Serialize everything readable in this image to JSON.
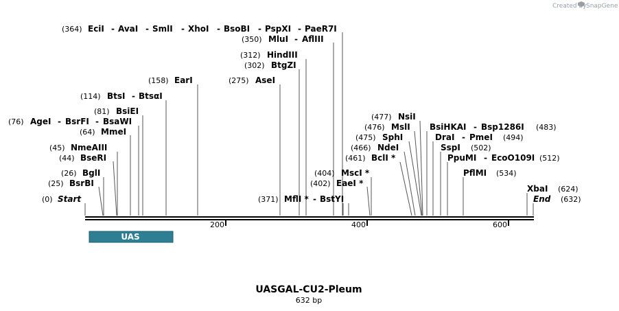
{
  "credit": "Created by",
  "brand": "SnapGene",
  "title": "UASGAL-CU2-Pleum",
  "length_label": "632 bp",
  "ticks": [
    {
      "label": "200",
      "pos": 200
    },
    {
      "label": "400",
      "pos": 400
    },
    {
      "label": "600",
      "pos": 600
    }
  ],
  "feature": {
    "label": "UAS",
    "color": "#2e7f94",
    "start": 5,
    "end": 125
  },
  "sites": [
    {
      "pos": "(364)",
      "names": [
        "EciI",
        "AvaI",
        "SmlI",
        "XhoI",
        "BsoBI",
        "PspXI",
        "PaeR7I"
      ],
      "cut": 364
    },
    {
      "pos": "(350)",
      "names": [
        "MluI",
        "AflIII"
      ],
      "cut": 350
    },
    {
      "pos": "(312)",
      "names": [
        "HindIII"
      ],
      "cut": 312
    },
    {
      "pos": "(302)",
      "names": [
        "BtgZI"
      ],
      "cut": 302
    },
    {
      "pos": "(158)",
      "names": [
        "EarI"
      ],
      "cut": 158
    },
    {
      "pos": "(275)",
      "names": [
        "AseI"
      ],
      "cut": 275
    },
    {
      "pos": "(114)",
      "names": [
        "BtsI",
        "BtsαI"
      ],
      "cut": 114
    },
    {
      "pos": "(81)",
      "names": [
        "BsiEI"
      ],
      "cut": 81
    },
    {
      "pos": "(76)",
      "names": [
        "AgeI",
        "BsrFI",
        "BsaWI"
      ],
      "cut": 76
    },
    {
      "pos": "(64)",
      "names": [
        "MmeI"
      ],
      "cut": 64
    },
    {
      "pos": "(45)",
      "names": [
        "NmeAIII"
      ],
      "cut": 45
    },
    {
      "pos": "(44)",
      "names": [
        "BseRI"
      ],
      "cut": 44
    },
    {
      "pos": "(26)",
      "names": [
        "BglI"
      ],
      "cut": 26
    },
    {
      "pos": "(25)",
      "names": [
        "BsrBI"
      ],
      "cut": 25
    },
    {
      "pos": "(0)",
      "names": [
        "Start"
      ],
      "cut": 0
    },
    {
      "pos": "(371)",
      "names": [
        "MflI *",
        "BstYI"
      ],
      "cut": 371
    },
    {
      "pos": "(404)",
      "names": [
        "MscI *"
      ],
      "cut": 404
    },
    {
      "pos": "(402)",
      "names": [
        "EaeI *"
      ],
      "cut": 402
    },
    {
      "pos": "(477)",
      "names": [
        "NsiI"
      ],
      "cut": 477
    },
    {
      "pos": "(476)",
      "names": [
        "MslI"
      ],
      "cut": 476
    },
    {
      "pos": "(475)",
      "names": [
        "SphI"
      ],
      "cut": 475
    },
    {
      "pos": "(466)",
      "names": [
        "NdeI"
      ],
      "cut": 466
    },
    {
      "pos": "(461)",
      "names": [
        "BclI *"
      ],
      "cut": 461
    },
    {
      "pos": "(483)",
      "names": [
        "BsiHKAI",
        "Bsp1286I"
      ],
      "cut": 483
    },
    {
      "pos": "(494)",
      "names": [
        "DraI",
        "PmeI"
      ],
      "cut": 494
    },
    {
      "pos": "(502)",
      "names": [
        "SspI"
      ],
      "cut": 502
    },
    {
      "pos": "(512)",
      "names": [
        "PpuMI",
        "EcoO109I"
      ],
      "cut": 512
    },
    {
      "pos": "(534)",
      "names": [
        "PflMI"
      ],
      "cut": 534
    },
    {
      "pos": "(624)",
      "names": [
        "XbaI"
      ],
      "cut": 624
    },
    {
      "pos": "(632)",
      "names": [
        "End"
      ],
      "cut": 632
    }
  ]
}
